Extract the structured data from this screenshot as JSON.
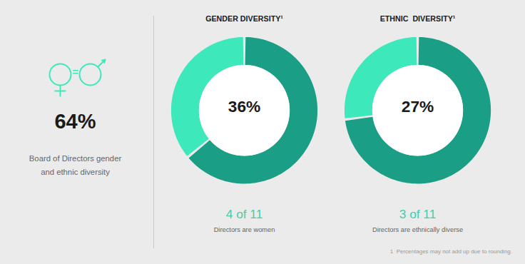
{
  "chart_data": [
    {
      "type": "pie",
      "title": "GENDER DIVERSITY¹",
      "values": [
        36,
        64
      ],
      "value_labels": [
        "36%",
        null
      ],
      "colors": [
        "#3de8bb",
        "#1a9e85"
      ],
      "data_labels": true,
      "annotations": [
        "4 of 11",
        "Directors are women"
      ]
    },
    {
      "type": "pie",
      "title": "ETHNIC  DIVERSITY¹",
      "values": [
        27,
        73
      ],
      "value_labels": [
        "27%",
        null
      ],
      "colors": [
        "#3de8bb",
        "#1a9e85"
      ],
      "data_labels": true,
      "annotations": [
        "3 of 11",
        "Directors are ethnically diverse"
      ]
    }
  ],
  "annotations": [
    "=",
    "64%",
    "Board of Directors gender\nand ethnic diversity",
    "1  Percentages may not add up due to rounding."
  ]
}
